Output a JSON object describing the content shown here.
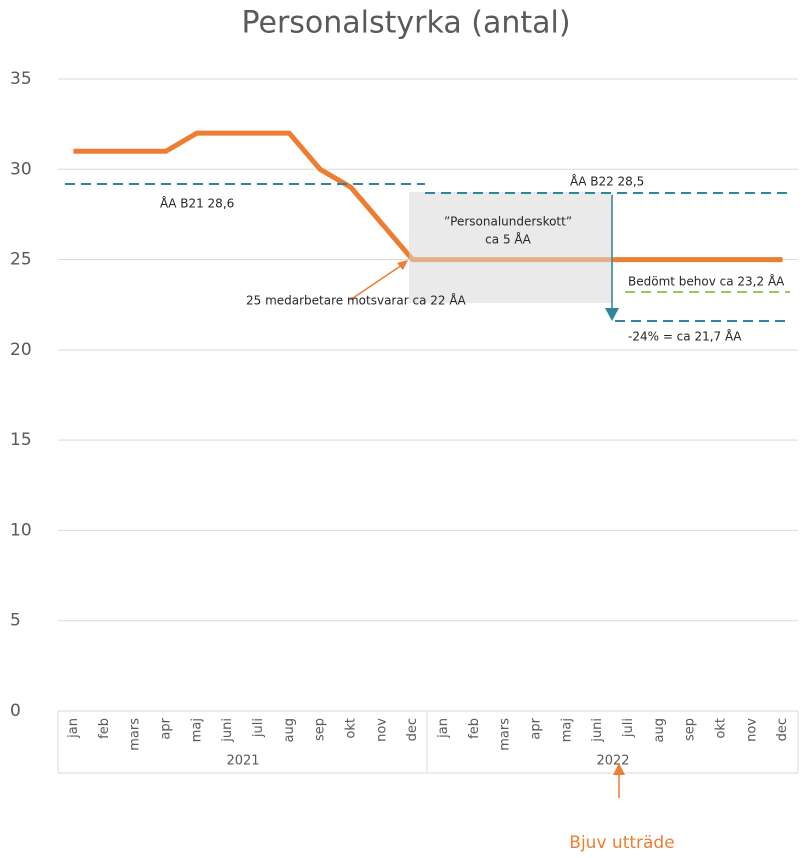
{
  "chart_data": {
    "type": "line",
    "title": "Personalstyrka (antal)",
    "categories": [
      "jan",
      "feb",
      "mars",
      "apr",
      "maj",
      "juni",
      "juli",
      "aug",
      "sep",
      "okt",
      "nov",
      "dec",
      "jan",
      "feb",
      "mars",
      "apr",
      "maj",
      "juni",
      "juli",
      "aug",
      "sep",
      "okt",
      "nov",
      "dec"
    ],
    "category_groups": [
      "2021",
      "2022"
    ],
    "series": [
      {
        "name": "Personalstyrka",
        "color": "#ed7d31",
        "values": [
          31,
          31,
          31,
          31,
          32,
          32,
          32,
          32,
          30,
          29,
          27,
          25,
          25,
          25,
          25,
          25,
          25,
          25,
          25,
          25,
          25,
          25,
          25,
          25
        ]
      }
    ],
    "ylim": [
      0,
      35
    ],
    "yticks": [
      0,
      5,
      10,
      15,
      20,
      25,
      30,
      35
    ],
    "grid": true,
    "annotations": {
      "b21": "ÅA B21 28,6",
      "b22": "ÅA B22 28,5",
      "shortage_1": "”Personalunderskott”",
      "shortage_2": "ca 5 ÅA",
      "need": "Bedömt behov ca 23,2 ÅA",
      "cut": "-24% = ca 21,7 ÅA",
      "staff": "25 medarbetare motsvarar ca 22 ÅA",
      "exit": "Bjuv utträde"
    }
  }
}
